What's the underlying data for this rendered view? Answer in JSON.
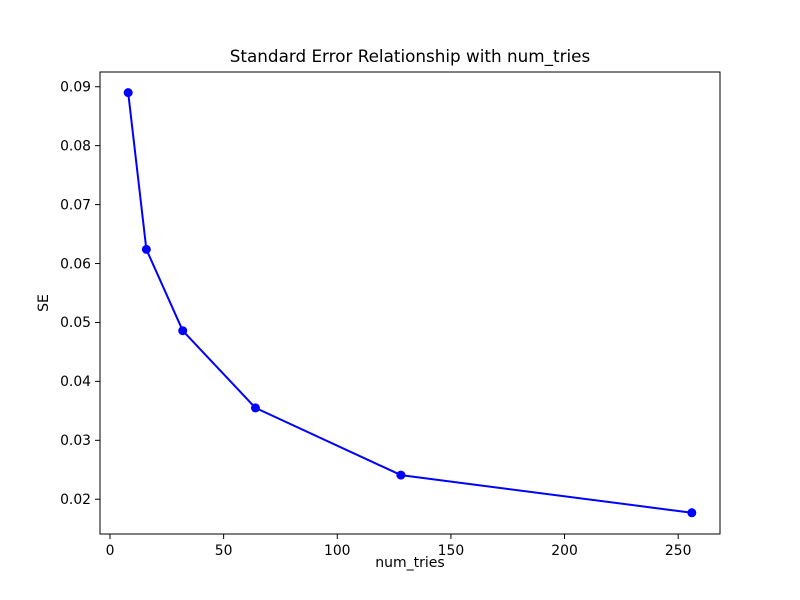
{
  "figure": {
    "background": "#ffffff"
  },
  "chart_data": {
    "type": "line",
    "title": "Standard Error Relationship with num_tries",
    "xlabel": "num_tries",
    "ylabel": "SE",
    "x": [
      8,
      16,
      32,
      64,
      128,
      256
    ],
    "y": [
      0.089,
      0.0624,
      0.0486,
      0.0355,
      0.0241,
      0.0177
    ],
    "line_color": "#0000ff",
    "marker": "circle",
    "marker_color": "#0000ff",
    "xlim": [
      -4.4,
      268.4
    ],
    "ylim": [
      0.0141,
      0.0925
    ],
    "x_ticks": [
      0,
      50,
      100,
      150,
      200,
      250
    ],
    "x_tick_labels": [
      "0",
      "50",
      "100",
      "150",
      "200",
      "250"
    ],
    "y_ticks": [
      0.02,
      0.03,
      0.04,
      0.05,
      0.06,
      0.07,
      0.08,
      0.09
    ],
    "y_tick_labels": [
      "0.02",
      "0.03",
      "0.04",
      "0.05",
      "0.06",
      "0.07",
      "0.08",
      "0.09"
    ],
    "grid": false,
    "legend": "none",
    "spine_color": "#000000",
    "text_color": "#000000"
  }
}
